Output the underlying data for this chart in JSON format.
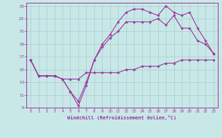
{
  "xlabel": "Windchill (Refroidissement éolien,°C)",
  "bg_color": "#c8e8e8",
  "grid_color": "#aacccc",
  "line_color": "#993399",
  "xlim": [
    -0.5,
    23.5
  ],
  "ylim": [
    9,
    25.5
  ],
  "xticks": [
    0,
    1,
    2,
    3,
    4,
    5,
    6,
    7,
    8,
    9,
    10,
    11,
    12,
    13,
    14,
    15,
    16,
    17,
    18,
    19,
    20,
    21,
    22,
    23
  ],
  "yticks": [
    9,
    11,
    13,
    15,
    17,
    19,
    21,
    23,
    25
  ],
  "line1_x": [
    0,
    1,
    2,
    3,
    4,
    5,
    6,
    7,
    8,
    9,
    10,
    11,
    12,
    13,
    14,
    15,
    16,
    17,
    18,
    19,
    20,
    21,
    22,
    23
  ],
  "line1_y": [
    16.5,
    14,
    14,
    14,
    13.5,
    13.5,
    13.5,
    14.5,
    14.5,
    14.5,
    14.5,
    14.5,
    15,
    15,
    15.5,
    15.5,
    15.5,
    16,
    16,
    16.5,
    16.5,
    16.5,
    16.5,
    16.5
  ],
  "line2_x": [
    0,
    1,
    2,
    3,
    4,
    5,
    6,
    7,
    8,
    9,
    10,
    11,
    12,
    13,
    14,
    15,
    16,
    17,
    18,
    19,
    20,
    21,
    22,
    23
  ],
  "line2_y": [
    16.5,
    14,
    14,
    14,
    13.5,
    11.5,
    10.0,
    13.0,
    16.5,
    18.5,
    20.0,
    21.0,
    22.5,
    22.5,
    22.5,
    22.5,
    23.0,
    22.0,
    23.5,
    21.5,
    21.5,
    19.5,
    19.0,
    17.5
  ],
  "line3_x": [
    0,
    1,
    2,
    3,
    4,
    5,
    6,
    7,
    8,
    9,
    10,
    11,
    12,
    13,
    14,
    15,
    16,
    17,
    18,
    19,
    20,
    21,
    22,
    23
  ],
  "line3_y": [
    16.5,
    14,
    14,
    14,
    13.5,
    11.5,
    9.3,
    12.5,
    16.5,
    19.0,
    20.5,
    22.5,
    24.0,
    24.5,
    24.5,
    24.0,
    23.5,
    25.0,
    24.0,
    23.5,
    24.0,
    21.5,
    19.5,
    17.5
  ]
}
